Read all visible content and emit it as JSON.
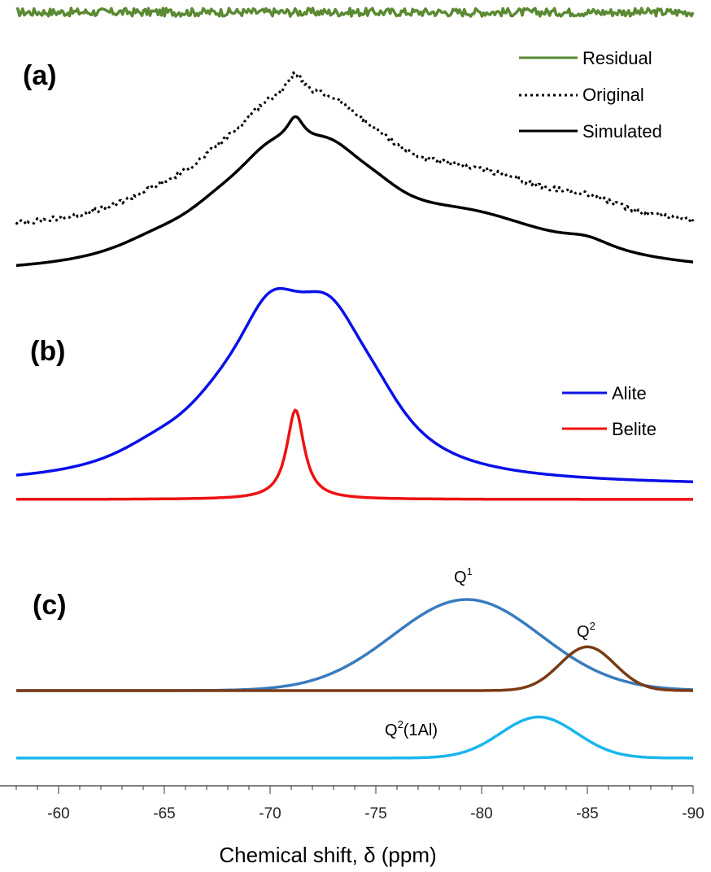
{
  "chart_data": {
    "type": "line",
    "xlabel": "Chemical shift, δ (ppm)",
    "xlim": [
      -58,
      -90
    ],
    "x_ticks": [
      "-60",
      "-65",
      "-70",
      "-75",
      "-80",
      "-85",
      "-90"
    ],
    "panels": [
      {
        "label": "(a)",
        "legend": [
          {
            "name": "Residual",
            "color": "#5a8a32",
            "style": "solid"
          },
          {
            "name": "Original",
            "color": "#000000",
            "style": "dotted"
          },
          {
            "name": "Simulated",
            "color": "#000000",
            "style": "solid"
          }
        ],
        "series": [
          {
            "name": "Residual",
            "color": "#5a8a32",
            "style": "solid",
            "kind": "noise",
            "baseline": 0.97,
            "amplitude": 0.02
          },
          {
            "name": "Original",
            "color": "#000000",
            "style": "dotted",
            "kind": "components",
            "offset": 0.3,
            "scale": 1.0,
            "noise": 0.035,
            "components": [
              [
                -64.5,
                0.09,
                2.5
              ],
              [
                -67.5,
                0.2,
                2.5
              ],
              [
                -70.0,
                0.5,
                2.3
              ],
              [
                -71.2,
                0.18,
                0.5
              ],
              [
                -72.8,
                0.5,
                2.3
              ],
              [
                -75.0,
                0.15,
                2.0
              ],
              [
                -79.5,
                0.35,
                5.5
              ],
              [
                -85.0,
                0.07,
                1.5
              ]
            ]
          },
          {
            "name": "Simulated",
            "color": "#000000",
            "style": "solid",
            "kind": "components",
            "offset": 0.0,
            "scale": 1.0,
            "noise": 0.0,
            "components": [
              [
                -64.5,
                0.09,
                2.5
              ],
              [
                -67.5,
                0.2,
                2.5
              ],
              [
                -70.0,
                0.5,
                2.3
              ],
              [
                -71.2,
                0.18,
                0.5
              ],
              [
                -72.8,
                0.5,
                2.3
              ],
              [
                -75.0,
                0.15,
                2.0
              ],
              [
                -79.5,
                0.35,
                5.5
              ],
              [
                -85.0,
                0.07,
                1.5
              ]
            ]
          }
        ]
      },
      {
        "label": "(b)",
        "legend": [
          {
            "name": "Alite",
            "color": "#0a10e8",
            "style": "solid"
          },
          {
            "name": "Belite",
            "color": "#ee1111",
            "style": "solid"
          }
        ],
        "series": [
          {
            "name": "Alite",
            "color": "#0a10e8",
            "style": "solid",
            "kind": "components",
            "offset": 0.08,
            "scale": 1.0,
            "noise": 0.0,
            "components": [
              [
                -64.5,
                0.09,
                2.5
              ],
              [
                -67.5,
                0.2,
                2.5
              ],
              [
                -70.0,
                0.75,
                2.2
              ],
              [
                -72.8,
                0.75,
                2.3
              ],
              [
                -75.0,
                0.2,
                2.0
              ]
            ]
          },
          {
            "name": "Belite",
            "color": "#ee1111",
            "style": "solid",
            "kind": "components",
            "offset": 0.0,
            "scale": 1.0,
            "noise": 0.0,
            "components": [
              [
                -71.2,
                0.55,
                0.5
              ]
            ]
          }
        ]
      },
      {
        "label": "(c)",
        "annotations": [
          {
            "text": "Q",
            "sup": "1",
            "x": -79.3,
            "y": 1.18
          },
          {
            "text": "Q",
            "sup": "2",
            "x": -85.0,
            "y": 0.56
          },
          {
            "text": "Q",
            "sup": "2",
            "suffix": "(1Al)",
            "x": -77.6,
            "y": -0.45
          }
        ],
        "series": [
          {
            "name": "Q1",
            "color": "#3a7bbf",
            "style": "solid",
            "kind": "components",
            "offset": 0.0,
            "scale": 1.0,
            "noise": 0.0,
            "components": [
              [
                -79.3,
                1.0,
                3.5
              ]
            ]
          },
          {
            "name": "Q2",
            "color": "#7b3b14",
            "style": "solid",
            "kind": "components",
            "offset": 0.0,
            "scale": 1.0,
            "noise": 0.0,
            "components": [
              [
                -85.0,
                0.48,
                1.3
              ]
            ]
          },
          {
            "name": "Q2(1Al)",
            "color": "#1ab6ee",
            "style": "solid",
            "kind": "components",
            "offset": -0.74,
            "scale": 1.0,
            "noise": 0.0,
            "components": [
              [
                -82.7,
                0.45,
                1.8
              ]
            ]
          }
        ]
      }
    ]
  }
}
